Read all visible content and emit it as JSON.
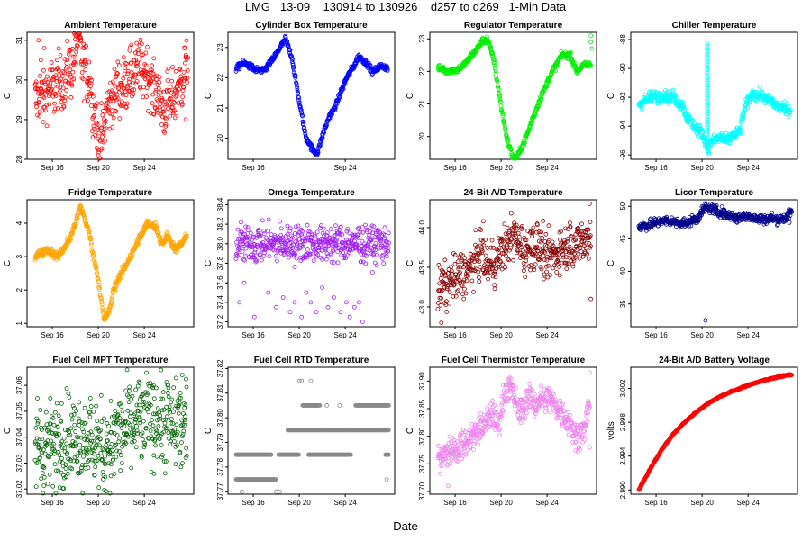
{
  "figure": {
    "title": "LMG   13-09    130914 to 130926    d257 to d269   1-Min Data",
    "xlabel": "Date"
  },
  "chart_data": [
    {
      "type": "scatter",
      "title": "Ambient Temperature",
      "ylabel": "C",
      "color": "#ff0000",
      "ylim": [
        28.0,
        31.2
      ],
      "yticks": [
        28.0,
        29.0,
        30.0,
        31.0
      ],
      "xticks": [
        "Sep 16",
        "Sep 20",
        "Sep 24"
      ],
      "trend": [
        [
          14.5,
          29.5
        ],
        [
          15.2,
          29.6
        ],
        [
          16,
          29.8
        ],
        [
          17,
          30.0
        ],
        [
          17.8,
          30.4
        ],
        [
          18.2,
          31.1
        ],
        [
          18.6,
          30.5
        ],
        [
          19.2,
          30.0
        ],
        [
          19.7,
          29.2
        ],
        [
          20.1,
          28.2
        ],
        [
          20.5,
          28.9
        ],
        [
          21.2,
          29.6
        ],
        [
          22,
          29.8
        ],
        [
          23,
          30.2
        ],
        [
          24,
          30.3
        ],
        [
          25,
          29.7
        ],
        [
          25.6,
          29.3
        ],
        [
          26.4,
          29.5
        ],
        [
          27,
          29.8
        ],
        [
          27.5,
          30.2
        ],
        [
          27.8,
          30.4
        ]
      ],
      "spread": 0.35,
      "outliers": [
        [
          14.8,
          31.0
        ],
        [
          15.0,
          30.5
        ],
        [
          15.3,
          30.8
        ],
        [
          20.0,
          28.1
        ],
        [
          27.5,
          30.8
        ],
        [
          27.6,
          29.0
        ]
      ]
    },
    {
      "type": "scatter",
      "title": "Cylinder Box Temperature",
      "ylabel": "C",
      "color": "#0000ff",
      "ylim": [
        19.3,
        23.5
      ],
      "yticks": [
        20,
        21,
        22,
        23
      ],
      "xticks": [
        "Sep 16",
        "Sep 24"
      ],
      "trend": [
        [
          14.5,
          22.3
        ],
        [
          15.2,
          22.5
        ],
        [
          16,
          22.3
        ],
        [
          16.8,
          22.2
        ],
        [
          17.5,
          22.5
        ],
        [
          18.2,
          22.9
        ],
        [
          18.8,
          23.3
        ],
        [
          19.4,
          22.6
        ],
        [
          20,
          21.2
        ],
        [
          20.6,
          20.0
        ],
        [
          21.2,
          19.6
        ],
        [
          21.6,
          19.5
        ],
        [
          22.1,
          20.2
        ],
        [
          22.6,
          20.7
        ],
        [
          23.2,
          21.1
        ],
        [
          24,
          21.9
        ],
        [
          24.6,
          22.3
        ],
        [
          25.2,
          22.7
        ],
        [
          25.8,
          22.5
        ],
        [
          26.4,
          22.2
        ],
        [
          27.2,
          22.4
        ],
        [
          27.7,
          22.3
        ]
      ],
      "spread": 0.05,
      "outliers": []
    },
    {
      "type": "scatter",
      "title": "Regulator Temperature",
      "ylabel": "C",
      "color": "#00ee00",
      "ylim": [
        19.3,
        23.2
      ],
      "yticks": [
        20,
        21,
        22,
        23
      ],
      "xticks": [
        "Sep 16",
        "Sep 20",
        "Sep 24"
      ],
      "trend": [
        [
          14.5,
          22.1
        ],
        [
          15.5,
          22.0
        ],
        [
          16.5,
          22.1
        ],
        [
          17.5,
          22.5
        ],
        [
          18.3,
          22.9
        ],
        [
          18.8,
          23.0
        ],
        [
          19.4,
          22.3
        ],
        [
          20,
          20.9
        ],
        [
          20.6,
          19.8
        ],
        [
          21.1,
          19.3
        ],
        [
          21.6,
          19.5
        ],
        [
          22.3,
          20.1
        ],
        [
          23,
          20.8
        ],
        [
          23.8,
          21.5
        ],
        [
          24.6,
          22.1
        ],
        [
          25.3,
          22.5
        ],
        [
          26,
          22.5
        ],
        [
          26.6,
          22.0
        ],
        [
          27.2,
          22.2
        ],
        [
          27.8,
          22.2
        ]
      ],
      "spread": 0.05,
      "outliers": [
        [
          27.8,
          23.1
        ],
        [
          27.8,
          22.9
        ],
        [
          27.9,
          22.7
        ]
      ]
    },
    {
      "type": "scatter",
      "title": "Chiller Temperature",
      "ylabel": "C",
      "color": "#00ffff",
      "ylim": [
        -96.3,
        -87.5
      ],
      "yticks": [
        -96,
        -94,
        -92,
        -90,
        -88
      ],
      "xticks": [
        "Sep 16",
        "Sep 20",
        "Sep 24"
      ],
      "trend": [
        [
          14.5,
          -92.5
        ],
        [
          15.5,
          -92.0
        ],
        [
          16.5,
          -91.9
        ],
        [
          17.5,
          -92.0
        ],
        [
          18.2,
          -92.5
        ],
        [
          18.8,
          -93.5
        ],
        [
          19.3,
          -94.0
        ],
        [
          20,
          -94.5
        ],
        [
          20.5,
          -95.5
        ],
        [
          21,
          -95.0
        ],
        [
          21.5,
          -94.8
        ],
        [
          22.2,
          -95.0
        ],
        [
          23.3,
          -94.3
        ],
        [
          23.8,
          -92.5
        ],
        [
          24.5,
          -91.7
        ],
        [
          25.3,
          -92.0
        ],
        [
          26,
          -92.3
        ],
        [
          26.8,
          -92.7
        ],
        [
          27.7,
          -92.9
        ]
      ],
      "spread": 0.2,
      "outliers": []
    },
    {
      "type": "scatter",
      "title": "Fridge Temperature",
      "ylabel": "C",
      "color": "#ffa500",
      "ylim": [
        0.9,
        4.7
      ],
      "yticks": [
        1,
        2,
        3,
        4
      ],
      "xticks": [
        "Sep 16",
        "Sep 20",
        "Sep 24"
      ],
      "trend": [
        [
          14.5,
          3.0
        ],
        [
          15.5,
          3.2
        ],
        [
          16.5,
          3.0
        ],
        [
          17.5,
          3.5
        ],
        [
          18.2,
          4.2
        ],
        [
          18.5,
          4.5
        ],
        [
          19.2,
          3.7
        ],
        [
          19.6,
          3.0
        ],
        [
          20,
          2.3
        ],
        [
          20.5,
          1.1
        ],
        [
          21,
          1.4
        ],
        [
          21.3,
          2.0
        ],
        [
          22,
          2.5
        ],
        [
          22.8,
          3.0
        ],
        [
          23.5,
          3.5
        ],
        [
          24.3,
          4.0
        ],
        [
          25,
          3.9
        ],
        [
          25.5,
          3.4
        ],
        [
          26,
          3.6
        ],
        [
          26.8,
          3.2
        ],
        [
          27.7,
          3.6
        ]
      ],
      "spread": 0.06,
      "outliers": []
    },
    {
      "type": "scatter",
      "title": "Omega Temperature",
      "ylabel": "C",
      "color": "#a020f0",
      "ylim": [
        37.15,
        38.45
      ],
      "yticks": [
        37.2,
        37.4,
        37.6,
        37.8,
        38.0,
        38.2,
        38.4
      ],
      "xticks": [
        "Sep 16",
        "Sep 20",
        "Sep 24"
      ],
      "trend": [
        [
          14.5,
          38.0
        ],
        [
          27.8,
          38.0
        ]
      ],
      "spread": 0.09,
      "outliers": [
        [
          14.8,
          37.4
        ],
        [
          15.2,
          37.6
        ],
        [
          16.1,
          37.25
        ],
        [
          17.3,
          37.5
        ],
        [
          18.0,
          37.35
        ],
        [
          18.6,
          37.45
        ],
        [
          19.2,
          37.3
        ],
        [
          19.6,
          37.4
        ],
        [
          20.2,
          37.25
        ],
        [
          20.6,
          37.5
        ],
        [
          21.0,
          37.4
        ],
        [
          21.5,
          37.3
        ],
        [
          22.0,
          37.55
        ],
        [
          22.5,
          37.35
        ],
        [
          23.0,
          37.45
        ],
        [
          23.6,
          37.3
        ],
        [
          24.1,
          37.4
        ],
        [
          24.4,
          37.25
        ],
        [
          24.8,
          37.35
        ],
        [
          25.2,
          37.4
        ],
        [
          25.5,
          37.2
        ]
      ]
    },
    {
      "type": "scatter",
      "title": "24-Bit A/D Temperature",
      "ylabel": "C",
      "color": "#8b0000",
      "ylim": [
        42.75,
        44.35
      ],
      "yticks": [
        43.0,
        43.5,
        44.0
      ],
      "xticks": [
        "Sep 16",
        "Sep 20",
        "Sep 24"
      ],
      "trend": [
        [
          14.5,
          43.2
        ],
        [
          15.5,
          43.3
        ],
        [
          16.5,
          43.4
        ],
        [
          17.5,
          43.5
        ],
        [
          18.2,
          43.7
        ],
        [
          19,
          43.5
        ],
        [
          19.7,
          43.6
        ],
        [
          20.5,
          43.8
        ],
        [
          21.2,
          43.9
        ],
        [
          22,
          43.7
        ],
        [
          23,
          43.8
        ],
        [
          24,
          43.6
        ],
        [
          25,
          43.7
        ],
        [
          26,
          43.8
        ],
        [
          27,
          43.8
        ],
        [
          27.8,
          43.9
        ]
      ],
      "spread": 0.14,
      "outliers": [
        [
          14.8,
          42.8
        ],
        [
          27.7,
          44.3
        ],
        [
          27.8,
          43.1
        ]
      ]
    },
    {
      "type": "scatter",
      "title": "Licor Temperature",
      "ylabel": "C",
      "color": "#00008b",
      "ylim": [
        31.5,
        51.0
      ],
      "yticks": [
        35,
        40,
        45,
        50
      ],
      "xticks": [
        "Sep 16",
        "Sep 20",
        "Sep 24"
      ],
      "trend": [
        [
          14.5,
          46.8
        ],
        [
          15.5,
          47.2
        ],
        [
          16.5,
          47.8
        ],
        [
          17.5,
          47.6
        ],
        [
          18.5,
          47.4
        ],
        [
          19.5,
          48.0
        ],
        [
          20.3,
          49.8
        ],
        [
          21,
          49.5
        ],
        [
          22,
          48.8
        ],
        [
          23,
          48.2
        ],
        [
          24,
          48.5
        ],
        [
          25,
          48.0
        ],
        [
          26,
          48.1
        ],
        [
          27,
          48.0
        ],
        [
          27.8,
          49.0
        ]
      ],
      "spread": 0.35,
      "outliers": [
        [
          20.3,
          32.5
        ],
        [
          27.6,
          47.5
        ]
      ]
    },
    {
      "type": "scatter",
      "title": "Fuel Cell MPT Temperature",
      "ylabel": "C",
      "color": "#006400",
      "ylim": [
        37.018,
        37.067
      ],
      "yticks": [
        37.02,
        37.03,
        37.04,
        37.05,
        37.06
      ],
      "xticks": [
        "Sep 16",
        "Sep 20",
        "Sep 24"
      ],
      "trend": [
        [
          14.5,
          37.036
        ],
        [
          16,
          37.037
        ],
        [
          17.5,
          37.04
        ],
        [
          19,
          37.04
        ],
        [
          20,
          37.036
        ],
        [
          20.5,
          37.035
        ],
        [
          21.5,
          37.04
        ],
        [
          23,
          37.045
        ],
        [
          24.5,
          37.047
        ],
        [
          26,
          37.045
        ],
        [
          27.7,
          37.045
        ]
      ],
      "spread": 0.008,
      "outliers": [
        [
          14.7,
          37.055
        ],
        [
          15.6,
          37.022
        ],
        [
          16.8,
          37.053
        ],
        [
          18.3,
          37.026
        ],
        [
          19.8,
          37.052
        ],
        [
          21.1,
          37.025
        ],
        [
          22.4,
          37.058
        ],
        [
          23.6,
          37.061
        ],
        [
          24.8,
          37.06
        ],
        [
          26.1,
          37.059
        ],
        [
          27.3,
          37.064
        ],
        [
          27.6,
          37.032
        ]
      ]
    },
    {
      "type": "scatter",
      "title": "Fuel Cell RTD Temperature",
      "ylabel": "C",
      "color": "#888888",
      "ylim": [
        37.769,
        37.8205
      ],
      "yticks": [
        37.77,
        37.78,
        37.79,
        37.8,
        37.81,
        37.82
      ],
      "xticks": [
        "Sep 16",
        "Sep 20",
        "Sep 24"
      ],
      "levels": [
        {
          "y": 37.775,
          "x": [
            [
              14.5,
              18.0
            ]
          ]
        },
        {
          "y": 37.785,
          "x": [
            [
              14.5,
              17.6
            ],
            [
              18.2,
              20.0
            ],
            [
              20.8,
              24.5
            ],
            [
              27.5,
              27.8
            ]
          ]
        },
        {
          "y": 37.795,
          "x": [
            [
              19.0,
              27.8
            ]
          ]
        },
        {
          "y": 37.805,
          "x": [
            [
              20.3,
              21.8
            ],
            [
              24.9,
              27.8
            ]
          ]
        }
      ],
      "outliers": [
        [
          15.0,
          37.77
        ],
        [
          18.0,
          37.77
        ],
        [
          18.3,
          37.77
        ],
        [
          20.0,
          37.815
        ],
        [
          20.2,
          37.815
        ],
        [
          14.8,
          37.775
        ],
        [
          27.6,
          37.775
        ],
        [
          23.5,
          37.805
        ],
        [
          22.4,
          37.805
        ],
        [
          21.0,
          37.815
        ]
      ]
    },
    {
      "type": "scatter",
      "title": "Fuel Cell Thermistor Temperature",
      "ylabel": "C",
      "color": "#ee82ee",
      "ylim": [
        37.695,
        37.925
      ],
      "yticks": [
        37.7,
        37.75,
        37.8,
        37.85,
        37.9
      ],
      "xticks": [
        "Sep 16",
        "Sep 20",
        "Sep 24"
      ],
      "trend": [
        [
          14.5,
          37.76
        ],
        [
          15.5,
          37.775
        ],
        [
          16.5,
          37.78
        ],
        [
          17.5,
          37.8
        ],
        [
          18.5,
          37.82
        ],
        [
          19.2,
          37.84
        ],
        [
          19.8,
          37.82
        ],
        [
          20.4,
          37.89
        ],
        [
          21,
          37.88
        ],
        [
          21.6,
          37.84
        ],
        [
          22.3,
          37.87
        ],
        [
          23,
          37.86
        ],
        [
          24,
          37.87
        ],
        [
          25,
          37.85
        ],
        [
          25.8,
          37.83
        ],
        [
          26.5,
          37.8
        ],
        [
          27.2,
          37.81
        ],
        [
          27.7,
          37.86
        ]
      ],
      "spread": 0.012,
      "outliers": [
        [
          15.4,
          37.71
        ],
        [
          27.7,
          37.915
        ],
        [
          27.7,
          37.78
        ]
      ]
    },
    {
      "type": "scatter",
      "title": "24-Bit A/D Battery Voltage",
      "ylabel": "volts",
      "color": "#ff0000",
      "ylim": [
        2.9895,
        3.0045
      ],
      "yticks": [
        2.99,
        2.994,
        2.998,
        3.002
      ],
      "xticks": [
        "Sep 16",
        "Sep 20",
        "Sep 24"
      ],
      "trend": [
        [
          14.5,
          2.99
        ],
        [
          15.5,
          2.9925
        ],
        [
          16.5,
          2.9948
        ],
        [
          17.5,
          2.9966
        ],
        [
          18.5,
          2.998
        ],
        [
          19.5,
          2.9992
        ],
        [
          20.5,
          3.0002
        ],
        [
          21.5,
          3.001
        ],
        [
          22.5,
          3.0016
        ],
        [
          23.5,
          3.0021
        ],
        [
          24.5,
          3.0026
        ],
        [
          25.5,
          3.003
        ],
        [
          26.5,
          3.0033
        ],
        [
          27.5,
          3.0036
        ],
        [
          27.8,
          3.0036
        ]
      ],
      "spread": 4e-05,
      "outliers": []
    }
  ]
}
